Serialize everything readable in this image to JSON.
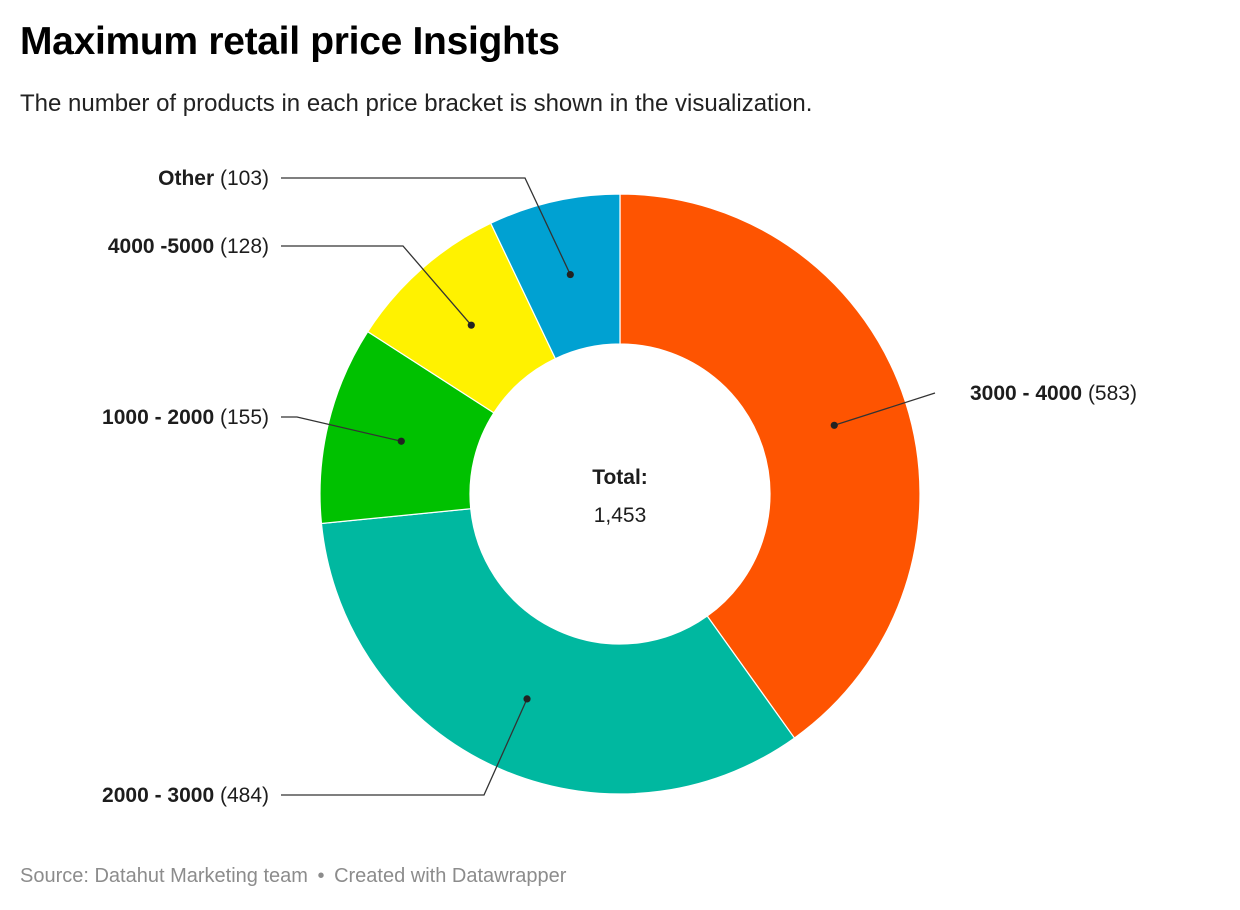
{
  "header": {
    "title": "Maximum retail price Insights",
    "subtitle": "The number of products in each price bracket is shown in the visualization."
  },
  "footer": {
    "source": "Source: Datahut Marketing team",
    "separator": "•",
    "credit": "Created with Datawrapper"
  },
  "chart_data": {
    "type": "pie",
    "variant": "donut",
    "center": {
      "label": "Total:",
      "value": "1,453"
    },
    "slices": [
      {
        "label": "3000 - 4000",
        "value": 583,
        "value_text": "(583)",
        "color": "#fe5401"
      },
      {
        "label": "2000 - 3000",
        "value": 484,
        "value_text": "(484)",
        "color": "#00b8a0"
      },
      {
        "label": "1000 - 2000",
        "value": 155,
        "value_text": "(155)",
        "color": "#00c100"
      },
      {
        "label": "4000 -5000",
        "value": 128,
        "value_text": "(128)",
        "color": "#fff200"
      },
      {
        "label": "Other",
        "value": 103,
        "value_text": "(103)",
        "color": "#00a1d2"
      }
    ],
    "legend": "none",
    "labels": "outside-with-leader-lines"
  }
}
